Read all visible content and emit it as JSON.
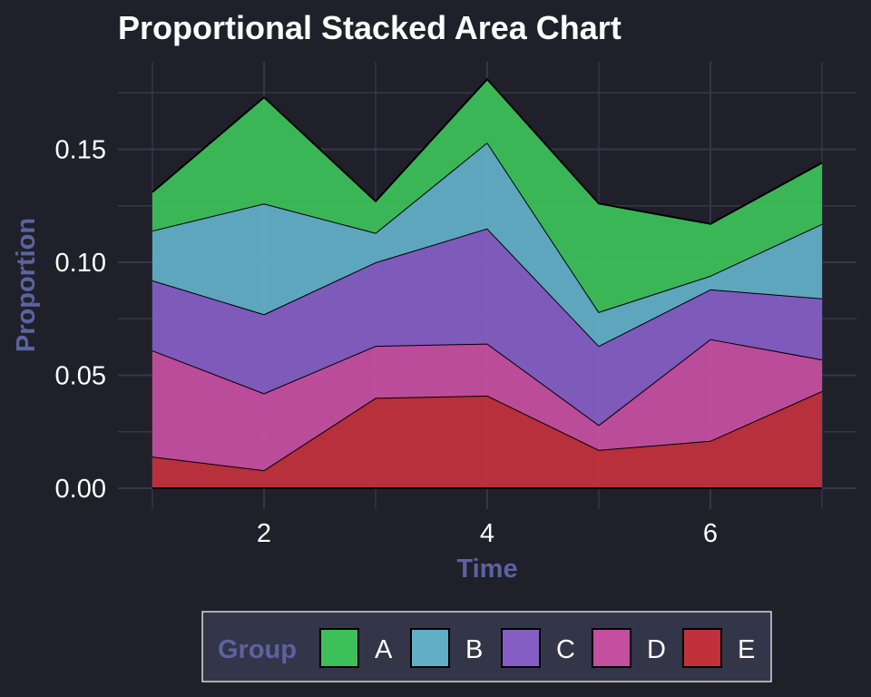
{
  "chart_data": {
    "type": "area",
    "stacked": true,
    "title": "Proportional Stacked Area Chart",
    "xlabel": "Time",
    "ylabel": "Proportion",
    "xlim": [
      1,
      7
    ],
    "ylim": [
      0,
      0.1875
    ],
    "x": [
      1,
      2,
      3,
      4,
      5,
      6,
      7
    ],
    "x_ticks": [
      2,
      4,
      6
    ],
    "y_ticks": [
      0.0,
      0.05,
      0.1,
      0.15
    ],
    "y_tick_labels": [
      "0.00",
      "0.05",
      "0.10",
      "0.15"
    ],
    "grid": true,
    "stack_order_bottom_to_top": [
      "E",
      "D",
      "C",
      "B",
      "A"
    ],
    "series": [
      {
        "name": "A",
        "color": "#3dbf5a",
        "values": [
          0.017,
          0.047,
          0.014,
          0.028,
          0.048,
          0.023,
          0.027
        ]
      },
      {
        "name": "B",
        "color": "#61aec6",
        "values": [
          0.022,
          0.049,
          0.013,
          0.038,
          0.015,
          0.006,
          0.033
        ]
      },
      {
        "name": "C",
        "color": "#845ec2",
        "values": [
          0.031,
          0.035,
          0.037,
          0.051,
          0.035,
          0.022,
          0.027
        ]
      },
      {
        "name": "D",
        "color": "#c44fa0",
        "values": [
          0.047,
          0.034,
          0.023,
          0.023,
          0.011,
          0.045,
          0.014
        ]
      },
      {
        "name": "E",
        "color": "#c0313c",
        "values": [
          0.014,
          0.008,
          0.04,
          0.041,
          0.017,
          0.021,
          0.043
        ]
      }
    ],
    "legend": {
      "title": "Group",
      "position": "bottom",
      "entries": [
        "A",
        "B",
        "C",
        "D",
        "E"
      ]
    }
  }
}
